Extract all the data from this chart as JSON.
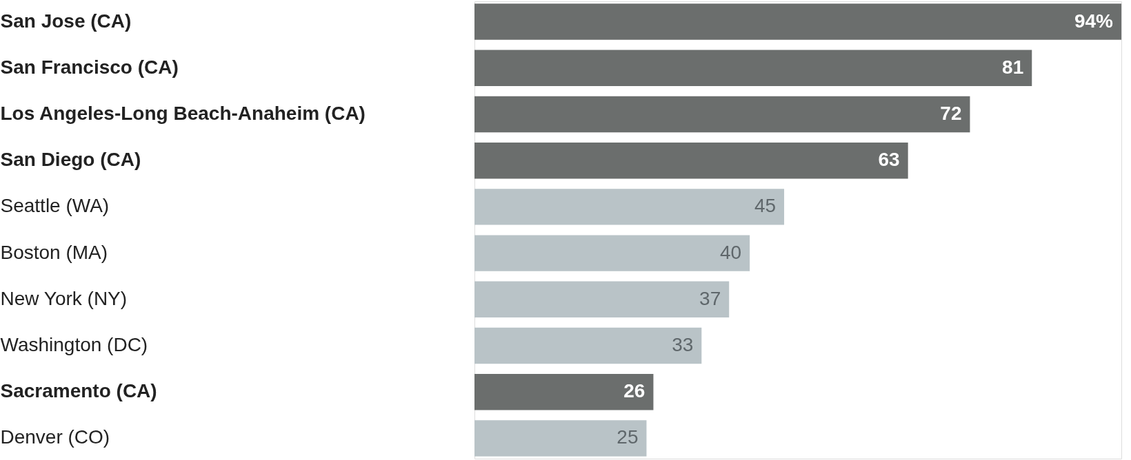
{
  "chart_data": {
    "type": "bar",
    "orientation": "horizontal",
    "categories": [
      "San Jose (CA)",
      "San Francisco (CA)",
      "Los Angeles-Long Beach-Anaheim (CA)",
      "San Diego (CA)",
      "Seattle (WA)",
      "Boston (MA)",
      "New York (NY)",
      "Washington (DC)",
      "Sacramento (CA)",
      "Denver (CO)"
    ],
    "values": [
      94,
      81,
      72,
      63,
      45,
      40,
      37,
      33,
      26,
      25
    ],
    "colors": [
      "#6b6e6d",
      "#6b6e6d",
      "#6b6e6d",
      "#6b6e6d",
      "#b9c3c7",
      "#b9c3c7",
      "#b9c3c7",
      "#b9c3c7",
      "#6b6e6d",
      "#b9c3c7"
    ],
    "value_labels": [
      "94%",
      "81",
      "72",
      "63",
      "45",
      "40",
      "37",
      "33",
      "26",
      "25"
    ],
    "grid": false
  }
}
